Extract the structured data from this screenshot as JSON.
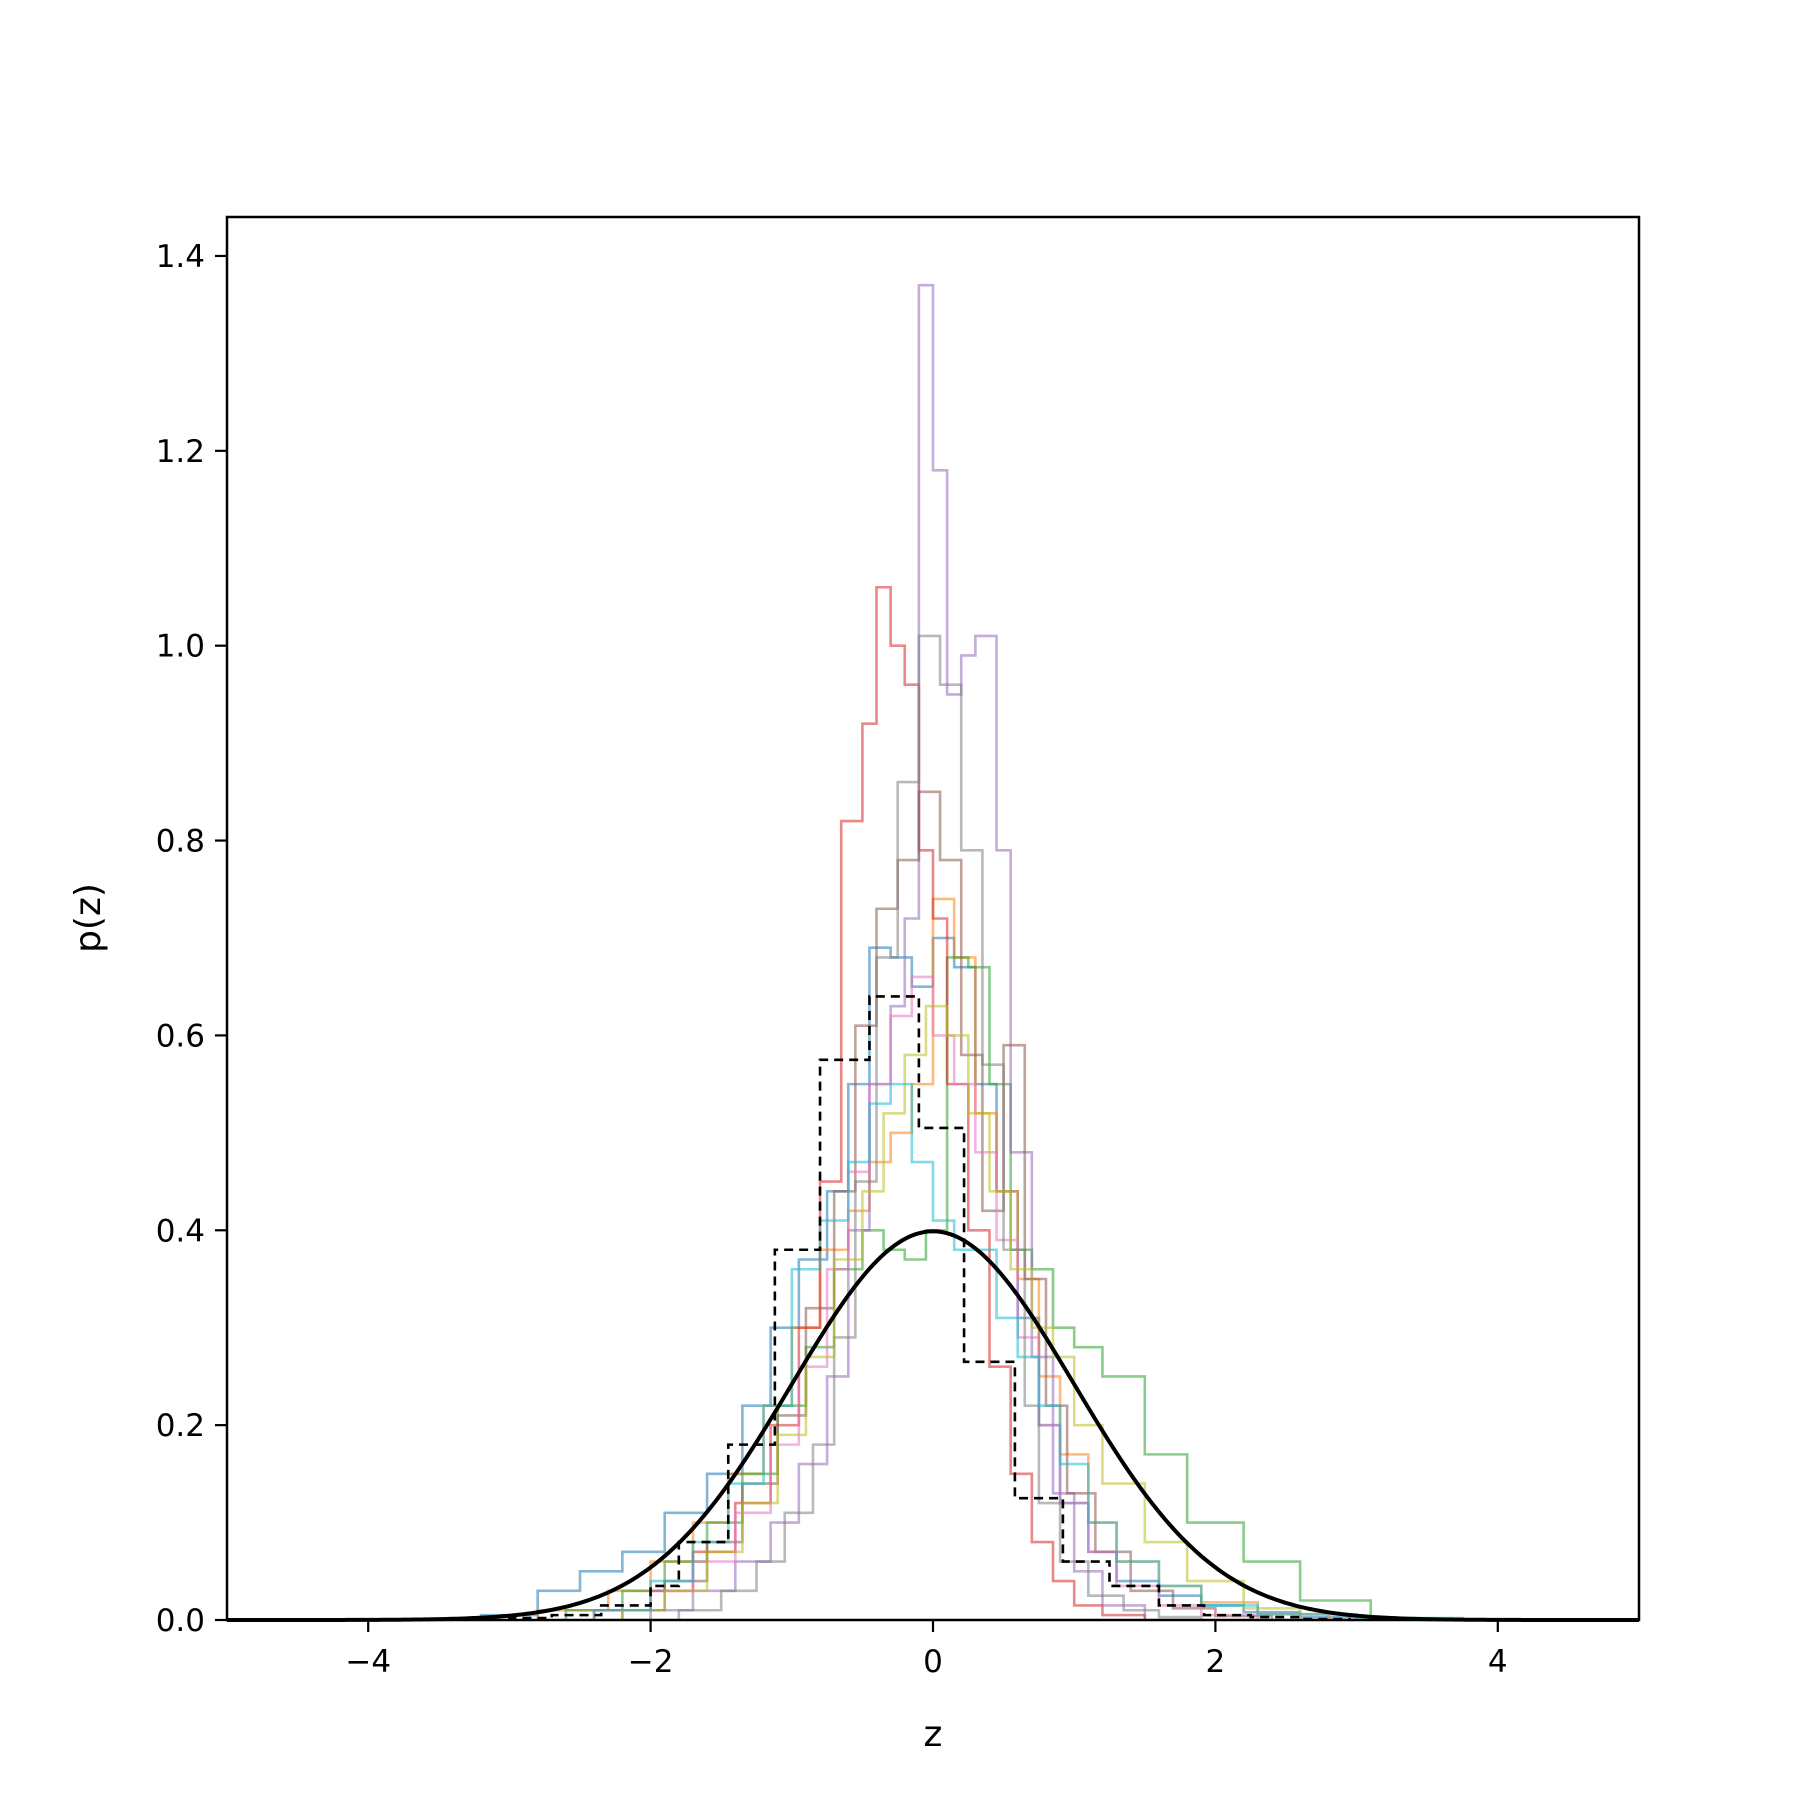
{
  "chart_data": {
    "type": "histogram",
    "title": "",
    "xlabel": "z",
    "ylabel": "p(z)",
    "xlim": [
      -5,
      5
    ],
    "ylim": [
      0,
      1.44
    ],
    "xticks": [
      -4,
      -2,
      0,
      2,
      4
    ],
    "xtick_labels": [
      "−4",
      "−2",
      "0",
      "2",
      "4"
    ],
    "yticks": [
      0.0,
      0.2,
      0.4,
      0.6,
      0.8,
      1.0,
      1.2,
      1.4
    ],
    "ytick_labels": [
      "0.0",
      "0.2",
      "0.4",
      "0.6",
      "0.8",
      "1.0",
      "1.2",
      "1.4"
    ],
    "grid": false,
    "legend": "none",
    "series": [
      {
        "color": "#1f77b4",
        "style": "step",
        "alpha": 0.55,
        "edges": [
          -3.2,
          -2.8,
          -2.5,
          -2.2,
          -1.9,
          -1.6,
          -1.35,
          -1.15,
          -0.95,
          -0.75,
          -0.6,
          -0.45,
          -0.3,
          -0.15,
          0,
          0.15,
          0.3,
          0.45,
          0.6,
          0.75,
          0.9,
          1.1,
          1.3,
          1.6,
          1.9,
          2.2,
          2.6,
          3.0
        ],
        "values": [
          0.005,
          0.03,
          0.05,
          0.07,
          0.11,
          0.15,
          0.22,
          0.3,
          0.37,
          0.44,
          0.55,
          0.69,
          0.68,
          0.65,
          0.7,
          0.67,
          0.55,
          0.44,
          0.31,
          0.2,
          0.12,
          0.07,
          0.04,
          0.025,
          0.015,
          0.008,
          0.003
        ]
      },
      {
        "color": "#ff7f0e",
        "style": "step",
        "alpha": 0.55,
        "edges": [
          -2.8,
          -2.3,
          -2.0,
          -1.7,
          -1.45,
          -1.2,
          -1.0,
          -0.8,
          -0.6,
          -0.45,
          -0.3,
          -0.15,
          0,
          0.15,
          0.3,
          0.45,
          0.6,
          0.75,
          0.9,
          1.1,
          1.3,
          1.6,
          1.9,
          2.3,
          2.8
        ],
        "values": [
          0.01,
          0.03,
          0.06,
          0.1,
          0.15,
          0.22,
          0.3,
          0.38,
          0.42,
          0.47,
          0.5,
          0.55,
          0.74,
          0.68,
          0.52,
          0.44,
          0.35,
          0.25,
          0.17,
          0.1,
          0.06,
          0.035,
          0.018,
          0.006
        ]
      },
      {
        "color": "#2ca02c",
        "style": "step",
        "alpha": 0.55,
        "edges": [
          -2.6,
          -2.2,
          -1.9,
          -1.6,
          -1.35,
          -1.1,
          -0.9,
          -0.7,
          -0.5,
          -0.35,
          -0.2,
          -0.05,
          0.1,
          0.25,
          0.4,
          0.55,
          0.7,
          0.85,
          1.0,
          1.2,
          1.5,
          1.8,
          2.2,
          2.6,
          3.1
        ],
        "values": [
          0.01,
          0.03,
          0.06,
          0.1,
          0.15,
          0.22,
          0.28,
          0.36,
          0.4,
          0.38,
          0.37,
          0.4,
          0.68,
          0.67,
          0.55,
          0.38,
          0.36,
          0.3,
          0.28,
          0.25,
          0.17,
          0.1,
          0.06,
          0.02
        ]
      },
      {
        "color": "#d62728",
        "style": "step",
        "alpha": 0.55,
        "edges": [
          -2.4,
          -2.0,
          -1.7,
          -1.4,
          -1.15,
          -0.95,
          -0.8,
          -0.65,
          -0.5,
          -0.4,
          -0.3,
          -0.2,
          -0.1,
          0,
          0.1,
          0.25,
          0.4,
          0.55,
          0.7,
          0.85,
          1.0,
          1.2,
          1.5
        ],
        "values": [
          0.01,
          0.03,
          0.07,
          0.12,
          0.2,
          0.3,
          0.45,
          0.82,
          0.92,
          1.06,
          1.0,
          0.96,
          0.79,
          0.72,
          0.55,
          0.4,
          0.26,
          0.15,
          0.08,
          0.04,
          0.015,
          0.005
        ]
      },
      {
        "color": "#9467bd",
        "style": "step",
        "alpha": 0.55,
        "edges": [
          -2.0,
          -1.7,
          -1.4,
          -1.15,
          -0.95,
          -0.75,
          -0.6,
          -0.45,
          -0.3,
          -0.2,
          -0.1,
          0,
          0.1,
          0.2,
          0.3,
          0.45,
          0.55,
          0.7,
          0.85,
          1.0,
          1.2,
          1.5
        ],
        "values": [
          0.01,
          0.03,
          0.06,
          0.1,
          0.16,
          0.25,
          0.4,
          0.55,
          0.63,
          0.72,
          1.37,
          1.18,
          0.95,
          0.99,
          1.01,
          0.79,
          0.48,
          0.27,
          0.13,
          0.05,
          0.015
        ]
      },
      {
        "color": "#8c564b",
        "style": "step",
        "alpha": 0.55,
        "edges": [
          -2.2,
          -1.9,
          -1.6,
          -1.35,
          -1.1,
          -0.9,
          -0.7,
          -0.55,
          -0.4,
          -0.25,
          -0.1,
          0.05,
          0.2,
          0.35,
          0.5,
          0.65,
          0.8,
          0.95,
          1.15,
          1.4,
          1.7,
          2.0,
          2.4
        ],
        "values": [
          0.01,
          0.04,
          0.08,
          0.14,
          0.21,
          0.32,
          0.44,
          0.61,
          0.73,
          0.78,
          0.85,
          0.78,
          0.58,
          0.42,
          0.59,
          0.35,
          0.22,
          0.13,
          0.07,
          0.03,
          0.012,
          0.004
        ]
      },
      {
        "color": "#e377c2",
        "style": "step",
        "alpha": 0.55,
        "edges": [
          -2.4,
          -2.0,
          -1.7,
          -1.4,
          -1.15,
          -0.95,
          -0.75,
          -0.6,
          -0.45,
          -0.3,
          -0.15,
          0,
          0.15,
          0.3,
          0.45,
          0.6,
          0.75,
          0.9,
          1.1,
          1.3,
          1.6,
          1.9,
          2.3
        ],
        "values": [
          0.01,
          0.03,
          0.06,
          0.11,
          0.18,
          0.26,
          0.36,
          0.46,
          0.55,
          0.62,
          0.66,
          0.6,
          0.55,
          0.48,
          0.39,
          0.29,
          0.2,
          0.12,
          0.07,
          0.035,
          0.015,
          0.005
        ]
      },
      {
        "color": "#7f7f7f",
        "style": "step",
        "alpha": 0.55,
        "edges": [
          -1.8,
          -1.5,
          -1.25,
          -1.05,
          -0.85,
          -0.7,
          -0.55,
          -0.4,
          -0.25,
          -0.1,
          0.05,
          0.2,
          0.35,
          0.5,
          0.65,
          0.75,
          0.9,
          1.1,
          1.35,
          1.6,
          1.9
        ],
        "values": [
          0.01,
          0.03,
          0.06,
          0.11,
          0.18,
          0.29,
          0.45,
          0.68,
          0.86,
          1.01,
          0.96,
          0.79,
          0.57,
          0.38,
          0.22,
          0.12,
          0.06,
          0.025,
          0.01,
          0.003
        ]
      },
      {
        "color": "#bcbd22",
        "style": "step",
        "alpha": 0.55,
        "edges": [
          -2.2,
          -1.9,
          -1.6,
          -1.35,
          -1.1,
          -0.9,
          -0.7,
          -0.5,
          -0.35,
          -0.2,
          -0.05,
          0.1,
          0.25,
          0.4,
          0.55,
          0.7,
          0.85,
          1.0,
          1.2,
          1.5,
          1.8,
          2.2,
          2.6
        ],
        "values": [
          0.01,
          0.03,
          0.07,
          0.12,
          0.19,
          0.27,
          0.37,
          0.44,
          0.52,
          0.58,
          0.63,
          0.6,
          0.52,
          0.44,
          0.36,
          0.3,
          0.27,
          0.2,
          0.14,
          0.08,
          0.04,
          0.012
        ]
      },
      {
        "color": "#17becf",
        "style": "step",
        "alpha": 0.55,
        "edges": [
          -2.4,
          -2.0,
          -1.7,
          -1.45,
          -1.2,
          -1.0,
          -0.8,
          -0.6,
          -0.45,
          -0.3,
          -0.15,
          0,
          0.15,
          0.3,
          0.45,
          0.6,
          0.75,
          0.9,
          1.1,
          1.3,
          1.6,
          1.9,
          2.3,
          3.0,
          3.75
        ],
        "values": [
          0.01,
          0.04,
          0.08,
          0.14,
          0.22,
          0.36,
          0.41,
          0.47,
          0.53,
          0.55,
          0.47,
          0.41,
          0.38,
          0.38,
          0.31,
          0.27,
          0.22,
          0.16,
          0.1,
          0.06,
          0.035,
          0.015,
          0.006,
          0.002
        ]
      },
      {
        "color": "#000000",
        "style": "dashed-step",
        "alpha": 1.0,
        "edges": [
          -3.0,
          -2.7,
          -2.35,
          -2.0,
          -1.8,
          -1.45,
          -1.12,
          -0.8,
          -0.45,
          -0.1,
          0.22,
          0.58,
          0.92,
          1.25,
          1.6,
          1.92,
          2.25,
          2.6,
          2.95
        ],
        "values": [
          0.002,
          0.005,
          0.015,
          0.035,
          0.08,
          0.18,
          0.38,
          0.575,
          0.64,
          0.505,
          0.265,
          0.125,
          0.06,
          0.035,
          0.015,
          0.005,
          0.003,
          0.001
        ]
      },
      {
        "color": "#000000",
        "style": "gaussian-pdf",
        "mean": 0,
        "std": 1
      }
    ]
  }
}
